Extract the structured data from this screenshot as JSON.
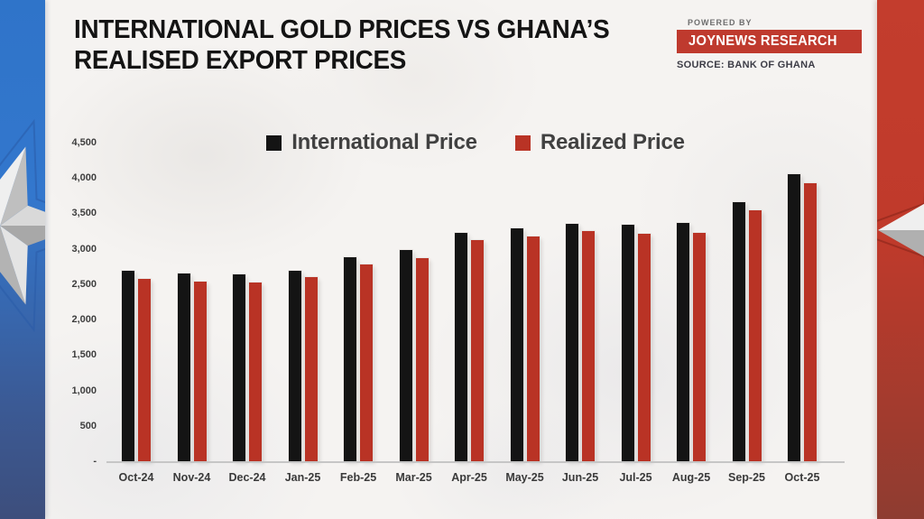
{
  "header": {
    "title_line1": "INTERNATIONAL GOLD PRICES VS GHANA’S",
    "title_line2": "REALISED EXPORT PRICES",
    "powered_by": "POWERED BY",
    "brand": "JOYNEWS RESEARCH",
    "source": "SOURCE: BANK OF GHANA"
  },
  "legend": [
    {
      "label": "International Price",
      "color": "#141414"
    },
    {
      "label": "Realized Price",
      "color": "#b93325"
    }
  ],
  "colors": {
    "black_bar": "#141414",
    "red_bar": "#b93325",
    "badge_red": "#bf3a2e",
    "accent_blue": "#2e57a5",
    "band_blue_top": "#2f74c9",
    "band_blue_bottom": "#3d4e7c",
    "band_red_top": "#c33d2d",
    "band_red_bottom": "#8e3c31",
    "background": "#f5f3f1"
  },
  "chart_data": {
    "type": "bar",
    "title": "INTERNATIONAL GOLD PRICES VS GHANA’S REALISED EXPORT PRICES",
    "xlabel": "",
    "ylabel": "",
    "grid": false,
    "legend_position": "top-center",
    "ylim": [
      0,
      4500
    ],
    "yticks": [
      {
        "label": "4,500",
        "value": 4500
      },
      {
        "label": "4,000",
        "value": 4000
      },
      {
        "label": "3,500",
        "value": 3500
      },
      {
        "label": "3,000",
        "value": 3000
      },
      {
        "label": "2,500",
        "value": 2500
      },
      {
        "label": "2,000",
        "value": 2000
      },
      {
        "label": "1,500",
        "value": 1500
      },
      {
        "label": "1,000",
        "value": 1000
      },
      {
        "label": "500",
        "value": 500
      },
      {
        "label": "-",
        "value": 0
      }
    ],
    "categories": [
      "Oct-24",
      "Nov-24",
      "Dec-24",
      "Jan-25",
      "Feb-25",
      "Mar-25",
      "Apr-25",
      "May-25",
      "Jun-25",
      "Jul-25",
      "Aug-25",
      "Sep-25",
      "Oct-25"
    ],
    "series": [
      {
        "name": "International Price",
        "color": "#141414",
        "values": [
          2685,
          2650,
          2635,
          2695,
          2885,
          2985,
          3220,
          3285,
          3350,
          3340,
          3360,
          3655,
          4050
        ]
      },
      {
        "name": "Realized Price",
        "color": "#b93325",
        "values": [
          2570,
          2535,
          2520,
          2600,
          2780,
          2870,
          3125,
          3175,
          3245,
          3215,
          3225,
          3550,
          3925
        ]
      }
    ]
  }
}
